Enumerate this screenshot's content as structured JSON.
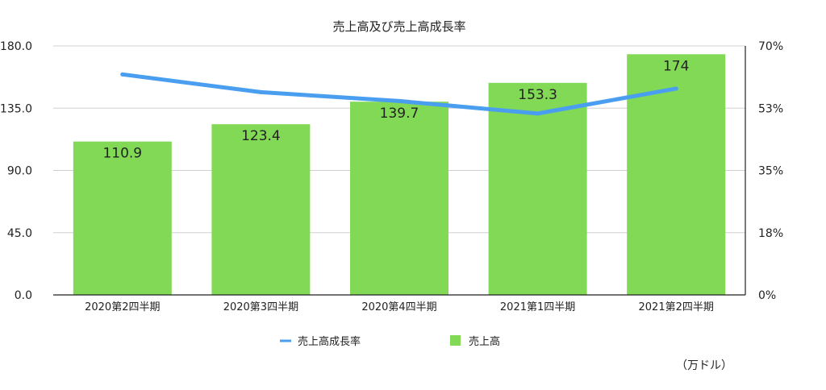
{
  "chart_data": {
    "type": "bar",
    "title": "売上高及び売上高成長率",
    "categories": [
      "2020第2四半期",
      "2020第3四半期",
      "2020第4四半期",
      "2021第1四半期",
      "2021第2四半期"
    ],
    "series": [
      {
        "name": "売上高",
        "type": "bar",
        "axis": "left",
        "color": "#82d955",
        "values": [
          110.9,
          123.4,
          139.7,
          153.3,
          174
        ],
        "labels": [
          "110.9",
          "123.4",
          "139.7",
          "153.3",
          "174"
        ]
      },
      {
        "name": "売上高成長率",
        "type": "line",
        "axis": "right",
        "color": "#4a9ef0",
        "values": [
          62,
          57,
          54.5,
          51,
          58
        ]
      }
    ],
    "y_left": {
      "ylim": [
        0,
        180
      ],
      "ticks": [
        "0.0",
        "45.0",
        "90.0",
        "135.0",
        "180.0"
      ]
    },
    "y_right": {
      "ylim": [
        0,
        70
      ],
      "ticks": [
        "0%",
        "18%",
        "35%",
        "53%",
        "70%"
      ]
    },
    "grid": true,
    "legend_position": "bottom",
    "unit_note": "（万ドル）"
  }
}
